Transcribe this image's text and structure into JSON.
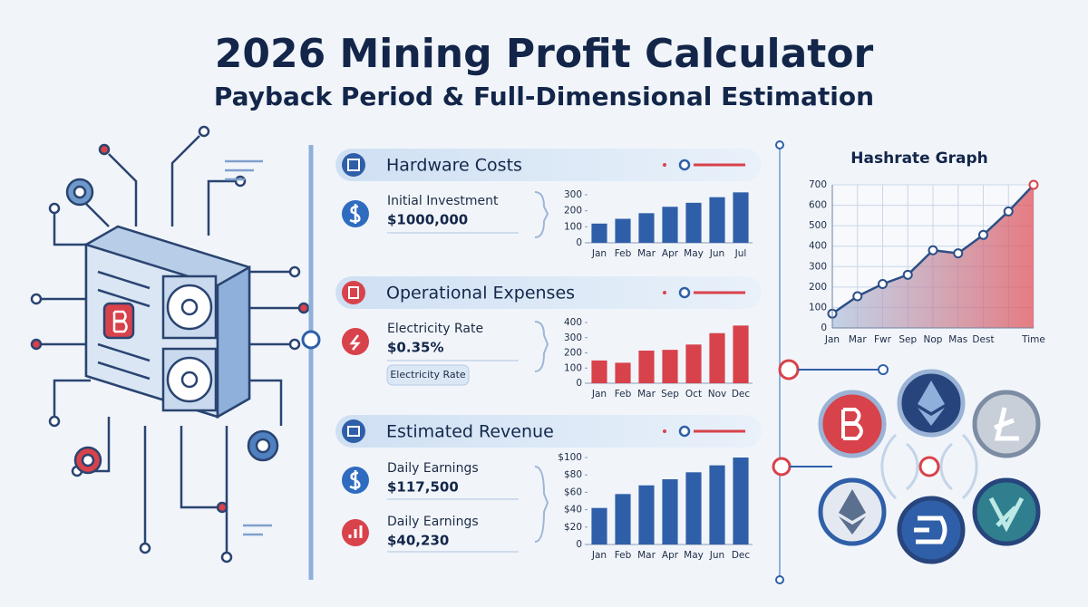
{
  "header": {
    "title": "2026 Mining Profit Calculator",
    "subtitle": "Payback Period & Full-Dimensional Estimation"
  },
  "panels": [
    {
      "title": "Hardware Costs",
      "items": [
        {
          "label": "Initial Investment",
          "value": "$1000,000"
        }
      ]
    },
    {
      "title": "Operational Expenses",
      "items": [
        {
          "label": "Electricity Rate",
          "value": "$0.35%"
        }
      ],
      "tag": "Electricity Rate"
    },
    {
      "title": "Estimated Revenue",
      "items": [
        {
          "label": "Daily Earnings",
          "value": "$117,500"
        },
        {
          "label": "Daily Earnings",
          "value": "$40,230"
        }
      ]
    }
  ],
  "chart_data": [
    {
      "type": "bar",
      "categories": [
        "Jan",
        "Feb",
        "Mar",
        "Apr",
        "May",
        "Jun",
        "Jul"
      ],
      "values": [
        120,
        150,
        185,
        225,
        250,
        285,
        315
      ],
      "color": "#2f5fa8",
      "ylim": [
        0,
        300
      ],
      "yticks": [
        0,
        100,
        200,
        300
      ]
    },
    {
      "type": "bar",
      "categories": [
        "Jan",
        "Feb",
        "Mar",
        "Sep",
        "Oct",
        "Nov",
        "Dec"
      ],
      "values": [
        150,
        135,
        215,
        220,
        255,
        330,
        380
      ],
      "color": "#d8424b",
      "ylim": [
        0,
        400
      ],
      "yticks": [
        0,
        100,
        200,
        300,
        400
      ]
    },
    {
      "type": "bar",
      "categories": [
        "Jan",
        "Feb",
        "Mar",
        "Apr",
        "May",
        "Jun",
        "Dec"
      ],
      "values": [
        42,
        58,
        68,
        75,
        83,
        91,
        100
      ],
      "color": "#2f5fa8",
      "ylim": [
        0,
        100
      ],
      "yticks": [
        {
          "value": 0,
          "label": "0"
        },
        {
          "value": 20,
          "label": "$20"
        },
        {
          "value": 40,
          "label": "$40"
        },
        {
          "value": 60,
          "label": "$60"
        },
        {
          "value": 80,
          "label": "$80"
        },
        {
          "value": 100,
          "label": "$100"
        }
      ]
    },
    {
      "type": "line",
      "title": "Hashrate Graph",
      "categories": [
        "Jan",
        "Mar",
        "Fwr",
        "Sep",
        "Nop",
        "Mas",
        "Dest",
        null,
        "Time"
      ],
      "values": [
        70,
        155,
        215,
        260,
        380,
        365,
        455,
        570,
        700
      ],
      "color": "#2d4f86",
      "ylim": [
        0,
        700
      ],
      "yticks": [
        0,
        100,
        200,
        300,
        400,
        500,
        600,
        700
      ],
      "grid": true
    }
  ]
}
